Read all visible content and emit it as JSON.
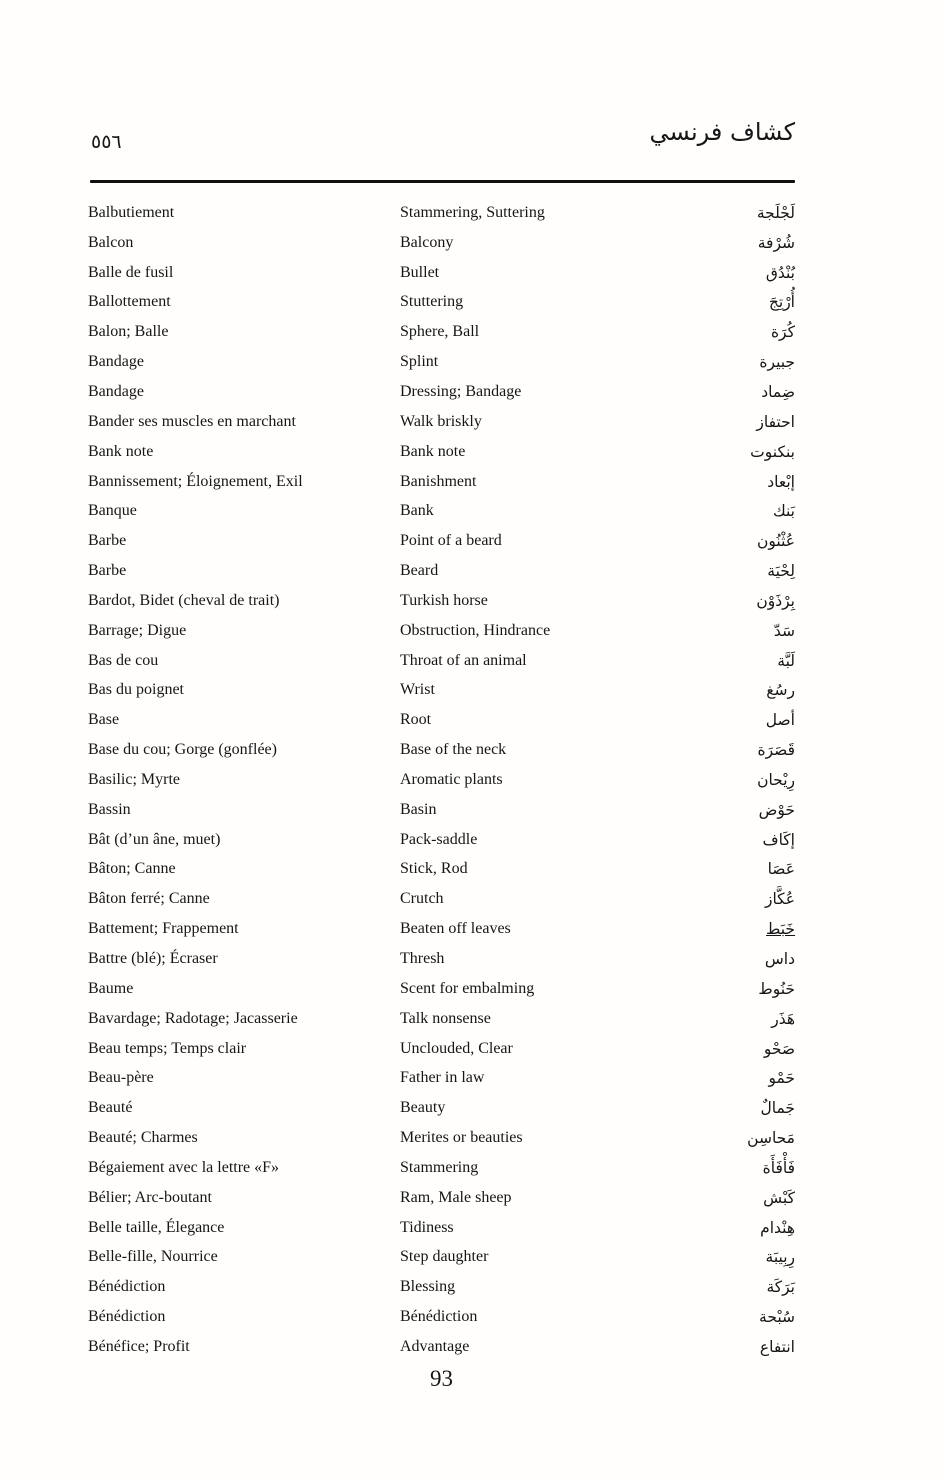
{
  "header": {
    "page_number_arabic": "٥٥٦",
    "title_arabic": "كشاف فرنسي"
  },
  "footer": {
    "page_number": "93"
  },
  "dictionary": {
    "columns": [
      "french",
      "english",
      "arabic"
    ],
    "rows": [
      {
        "french": "Balbutiement",
        "english": "Stammering, Suttering",
        "arabic": "لَجْلَجة"
      },
      {
        "french": "Balcon",
        "english": "Balcony",
        "arabic": "شُرْفة"
      },
      {
        "french": "Balle de fusil",
        "english": "Bullet",
        "arabic": "بُنْدُق"
      },
      {
        "french": "Ballottement",
        "english": "Stuttering",
        "arabic": "أُرْتِجَ"
      },
      {
        "french": "Balon; Balle",
        "english": "Sphere, Ball",
        "arabic": "كُرَة"
      },
      {
        "french": "Bandage",
        "english": "Splint",
        "arabic": "جبيرة"
      },
      {
        "french": "Bandage",
        "english": "Dressing; Bandage",
        "arabic": "ضِماد"
      },
      {
        "french": "Bander ses muscles en marchant",
        "english": "Walk briskly",
        "arabic": "احتفاز"
      },
      {
        "french": "Bank note",
        "english": "Bank note",
        "arabic": "بنكنوت"
      },
      {
        "french": "Bannissement; Éloignement, Exil",
        "english": "Banishment",
        "arabic": "إبْعاد"
      },
      {
        "french": "Banque",
        "english": "Bank",
        "arabic": "بَنك"
      },
      {
        "french": "Barbe",
        "english": "Point of a beard",
        "arabic": "عُثْنُون"
      },
      {
        "french": "Barbe",
        "english": "Beard",
        "arabic": "لِحْيَة"
      },
      {
        "french": "Bardot, Bidet (cheval de trait)",
        "english": "Turkish horse",
        "arabic": "بِرْذَوْن"
      },
      {
        "french": "Barrage; Digue",
        "english": "Obstruction, Hindrance",
        "arabic": "سَدّ"
      },
      {
        "french": "Bas de cou",
        "english": "Throat of an animal",
        "arabic": "لَبَّة"
      },
      {
        "french": "Bas du poignet",
        "english": "Wrist",
        "arabic": "رسُغ"
      },
      {
        "french": "Base",
        "english": "Root",
        "arabic": "أصل"
      },
      {
        "french": "Base du cou; Gorge (gonflée)",
        "english": "Base of the neck",
        "arabic": "قَصَرَة"
      },
      {
        "french": "Basilic; Myrte",
        "english": "Aromatic plants",
        "arabic": "رِيْحان"
      },
      {
        "french": "Bassin",
        "english": "Basin",
        "arabic": "حَوْض"
      },
      {
        "french": "Bât (d’un âne, muet)",
        "english": "Pack-saddle",
        "arabic": "إكَاف"
      },
      {
        "french": "Bâton; Canne",
        "english": "Stick, Rod",
        "arabic": "عَصَا"
      },
      {
        "french": "Bâton ferré; Canne",
        "english": "Crutch",
        "arabic": "عُكَّاز"
      },
      {
        "french": "Battement; Frappement",
        "english": "Beaten off leaves",
        "arabic": "خَبَط",
        "underline": true
      },
      {
        "french": "Battre (blé); Écraser",
        "english": "Thresh",
        "arabic": "داس"
      },
      {
        "french": "Baume",
        "english": "Scent for embalming",
        "arabic": "حَنُوط"
      },
      {
        "french": "Bavardage; Radotage; Jacasserie",
        "english": "Talk nonsense",
        "arabic": "هَذَر"
      },
      {
        "french": "Beau temps; Temps clair",
        "english": "Unclouded, Clear",
        "arabic": "صَحْو"
      },
      {
        "french": "Beau-père",
        "english": "Father in law",
        "arabic": "حَمْو"
      },
      {
        "french": "Beauté",
        "english": "Beauty",
        "arabic": "جَمالٌ"
      },
      {
        "french": "Beauté; Charmes",
        "english": "Merites or beauties",
        "arabic": "مَحاسِن"
      },
      {
        "french": "Bégaiement avec la lettre «F»",
        "english": "Stammering",
        "arabic": "فَأْفَأَة"
      },
      {
        "french": "Bélier; Arc-boutant",
        "english": "Ram, Male sheep",
        "arabic": "كَبْش"
      },
      {
        "french": "Belle taille, Élegance",
        "english": "Tidiness",
        "arabic": "هِنْدام"
      },
      {
        "french": "Belle-fille, Nourrice",
        "english": "Step daughter",
        "arabic": "رِبِيبَة"
      },
      {
        "french": "Bénédiction",
        "english": "Blessing",
        "arabic": "بَرَكَة"
      },
      {
        "french": "Bénédiction",
        "english": "Bénédiction",
        "arabic": "سُبْحة"
      },
      {
        "french": "Bénéfice; Profit",
        "english": "Advantage",
        "arabic": "انتفاع"
      }
    ]
  }
}
